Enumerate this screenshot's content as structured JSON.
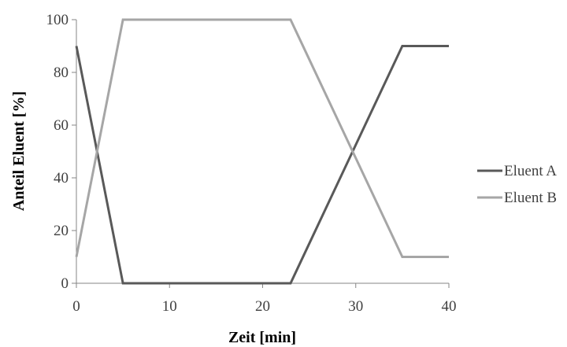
{
  "chart_data": {
    "type": "line",
    "xlabel": "Zeit [min]",
    "ylabel": "Anteil Eluent [%]",
    "xlim": [
      0,
      40
    ],
    "ylim": [
      0,
      100
    ],
    "x_ticks": [
      "0",
      "10",
      "20",
      "30",
      "40"
    ],
    "y_ticks": [
      "0",
      "20",
      "40",
      "60",
      "80",
      "100"
    ],
    "grid": false,
    "legend_position": "right",
    "series": [
      {
        "name": "Eluent A",
        "color": "#595959",
        "points": [
          [
            0,
            90
          ],
          [
            5,
            0
          ],
          [
            23,
            0
          ],
          [
            35,
            90
          ],
          [
            40,
            90
          ]
        ]
      },
      {
        "name": "Eluent B",
        "color": "#a6a6a6",
        "points": [
          [
            0,
            10
          ],
          [
            5,
            100
          ],
          [
            23,
            100
          ],
          [
            35,
            10
          ],
          [
            40,
            10
          ]
        ]
      }
    ]
  }
}
